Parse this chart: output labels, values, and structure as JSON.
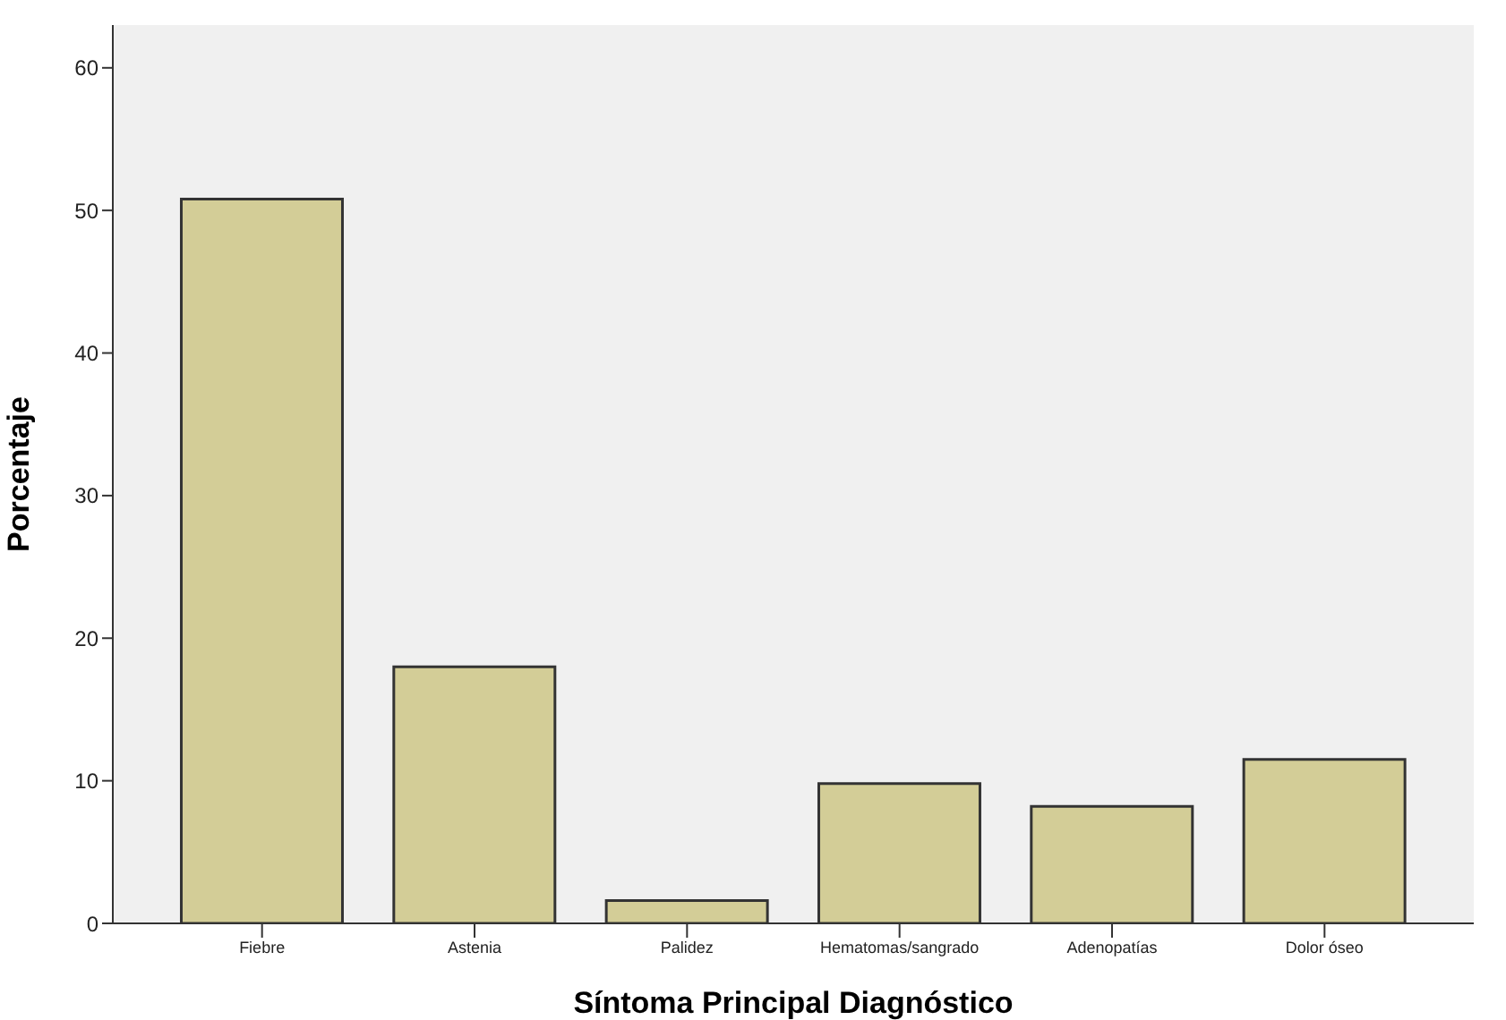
{
  "chart_data": {
    "type": "bar",
    "xlabel": "Síntoma Principal Diagnóstico",
    "ylabel": "Porcentaje",
    "categories": [
      "Fiebre",
      "Astenia",
      "Palidez",
      "Hematomas/sangrado",
      "Adenopatías",
      "Dolor óseo"
    ],
    "values": [
      50.8,
      18.0,
      1.6,
      9.8,
      8.2,
      11.5
    ],
    "color": "#d3cd97",
    "ylim": [
      0,
      63
    ],
    "yticks": [
      0,
      10,
      20,
      30,
      40,
      50,
      60
    ],
    "grid": false,
    "legend": false
  }
}
